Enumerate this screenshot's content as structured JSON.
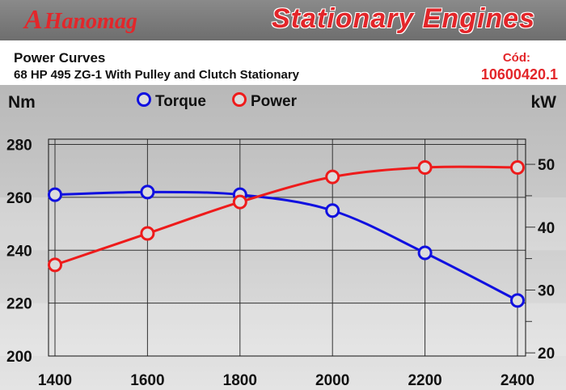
{
  "header": {
    "brand_mark": "A",
    "brand_name": "Hanomag",
    "banner_title": "Stationary Engines"
  },
  "info": {
    "title": "Power Curves",
    "subtitle": "68 HP 495 ZG-1 With Pulley and Clutch Stationary",
    "code_label": "Cód:",
    "code_value": "10600420.1"
  },
  "colors": {
    "torque": "#1010e0",
    "power": "#ee1b1b",
    "brand": "#e3262a"
  },
  "chart_data": {
    "type": "line",
    "x": [
      1400,
      1600,
      1800,
      2000,
      2200,
      2400
    ],
    "xlim": [
      1400,
      2400
    ],
    "y_left": {
      "label": "Nm",
      "ticks": [
        200,
        220,
        240,
        260,
        280
      ],
      "lim": [
        200,
        282
      ]
    },
    "y_right": {
      "label": "kW",
      "ticks": [
        20,
        30,
        40,
        50
      ],
      "lim": [
        19.5,
        54
      ]
    },
    "series": [
      {
        "name": "Torque",
        "axis": "left",
        "values": [
          261,
          262,
          261,
          255,
          239,
          221
        ]
      },
      {
        "name": "Power",
        "axis": "right",
        "values": [
          34,
          39,
          44,
          48,
          49.5,
          49.5
        ]
      }
    ],
    "legend": "top-center",
    "grid": true
  }
}
